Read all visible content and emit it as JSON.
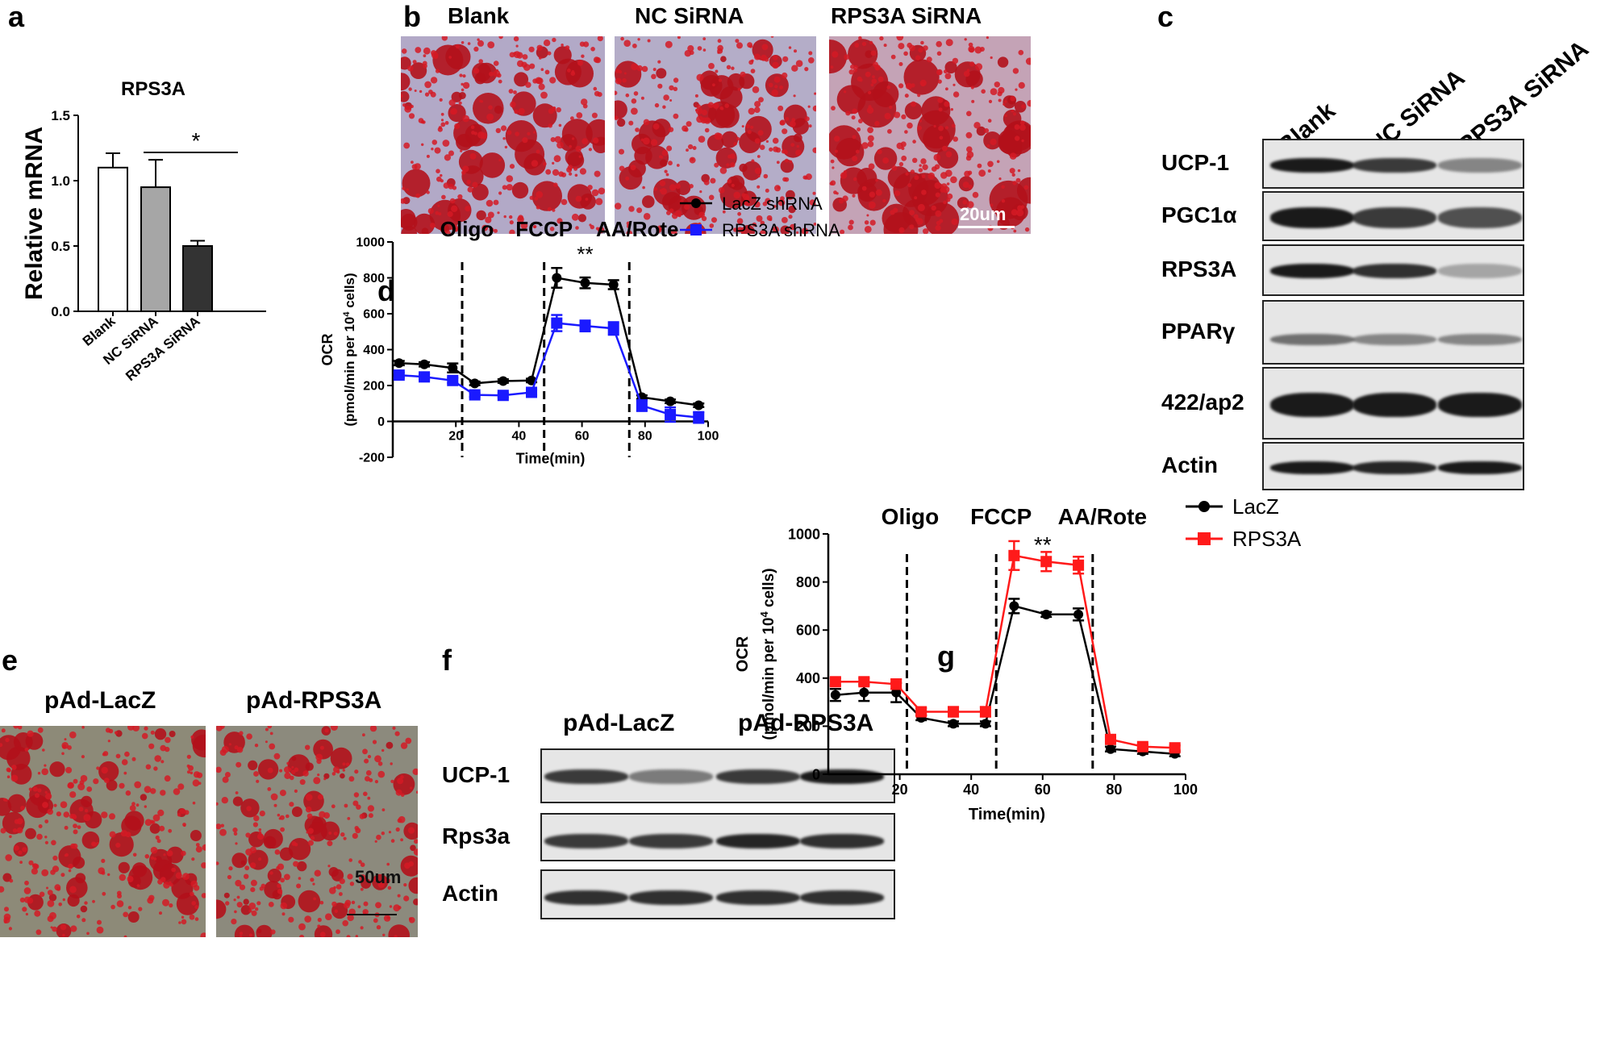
{
  "letters": {
    "a": "a",
    "b": "b",
    "c": "c",
    "d": "d",
    "e": "e",
    "f": "f",
    "g": "g"
  },
  "panel_a": {
    "chart_data": {
      "type": "bar",
      "title": "RPS3A",
      "ylabel": "Relative mRNA",
      "categories": [
        "Blank",
        "NC SiRNA",
        "RPS3A SiRNA"
      ],
      "values": [
        1.1,
        0.95,
        0.5
      ],
      "errors": [
        0.11,
        0.21,
        0.04
      ],
      "ylim": [
        0,
        1.5
      ],
      "yticks": [
        "0.0",
        "0.5",
        "1.0",
        "1.5"
      ],
      "bar_colors": [
        "#ffffff",
        "#a6a6a6",
        "#333333"
      ],
      "significance": "*"
    }
  },
  "panel_b": {
    "labels": [
      "Blank",
      "NC SiRNA",
      "RPS3A SiRNA"
    ],
    "scalebar": "20um"
  },
  "panel_c": {
    "lanes": [
      "Blank",
      "NC SiRNA",
      "RPS3A SiRNA"
    ],
    "rows": [
      "UCP-1",
      "PGC1α",
      "RPS3A",
      "PPARγ",
      "422/ap2",
      "Actin"
    ]
  },
  "panel_d": {
    "chart_data": {
      "type": "line",
      "xlabel": "Time(min)",
      "ylabel_line1": "OCR",
      "ylabel_line2": "(pmol/min per 10",
      "ylabel_sup": "4",
      "ylabel_end": " cells)",
      "ylim": [
        -200,
        1000
      ],
      "xlim": [
        0,
        100
      ],
      "yticks": [
        "-200",
        "0",
        "200",
        "400",
        "600",
        "800",
        "1000"
      ],
      "xticks": [
        "20",
        "40",
        "60",
        "80",
        "100"
      ],
      "x": [
        2,
        10,
        19,
        26,
        35,
        44,
        52,
        61,
        70,
        79,
        88,
        97
      ],
      "series": [
        {
          "name": "LacZ shRNA",
          "color": "#000000",
          "marker": "circle",
          "values": [
            325,
            318,
            298,
            212,
            225,
            228,
            800,
            772,
            762,
            135,
            112,
            90
          ],
          "errors": [
            12,
            12,
            25,
            10,
            10,
            10,
            55,
            30,
            25,
            10,
            10,
            10
          ]
        },
        {
          "name": "RPS3A shRNA",
          "color": "#1a1aff",
          "marker": "square",
          "values": [
            258,
            248,
            228,
            148,
            145,
            162,
            548,
            532,
            518,
            88,
            38,
            22
          ],
          "errors": [
            15,
            15,
            15,
            12,
            12,
            15,
            45,
            30,
            35,
            30,
            40,
            30
          ]
        }
      ],
      "vlines": [
        22,
        48,
        75
      ],
      "injections": [
        "Oligo",
        "FCCP",
        "AA/Rote"
      ],
      "significance": "**"
    }
  },
  "panel_e": {
    "labels": [
      "pAd-LacZ",
      "pAd-RPS3A"
    ],
    "scalebar": "50um"
  },
  "panel_f": {
    "groups": [
      "pAd-LacZ",
      "pAd-RPS3A"
    ],
    "rows": [
      "UCP-1",
      "Rps3a",
      "Actin"
    ]
  },
  "panel_g": {
    "chart_data": {
      "type": "line",
      "xlabel": "Time(min)",
      "ylabel_line1": "OCR",
      "ylabel_line2": "(pmol/min per 10",
      "ylabel_sup": "4",
      "ylabel_end": " cells)",
      "ylim": [
        0,
        1000
      ],
      "xlim": [
        0,
        100
      ],
      "yticks": [
        "0",
        "200",
        "400",
        "600",
        "800",
        "1000"
      ],
      "xticks": [
        "20",
        "40",
        "60",
        "80",
        "100"
      ],
      "x": [
        2,
        10,
        19,
        26,
        35,
        44,
        52,
        61,
        70,
        79,
        88,
        97
      ],
      "series": [
        {
          "name": "LacZ",
          "color": "#000000",
          "marker": "circle",
          "values": [
            330,
            340,
            340,
            235,
            210,
            210,
            700,
            665,
            665,
            105,
            95,
            85
          ],
          "errors": [
            25,
            35,
            40,
            10,
            10,
            10,
            30,
            10,
            25,
            10,
            10,
            10
          ]
        },
        {
          "name": "RPS3A",
          "color": "#ff1a1a",
          "marker": "square",
          "values": [
            385,
            385,
            375,
            260,
            260,
            260,
            910,
            885,
            870,
            145,
            115,
            110
          ],
          "errors": [
            15,
            15,
            20,
            15,
            20,
            20,
            60,
            40,
            35,
            10,
            10,
            10
          ]
        }
      ],
      "vlines": [
        22,
        47,
        74
      ],
      "injections": [
        "Oligo",
        "FCCP",
        "AA/Rote"
      ],
      "significance": "**"
    }
  }
}
